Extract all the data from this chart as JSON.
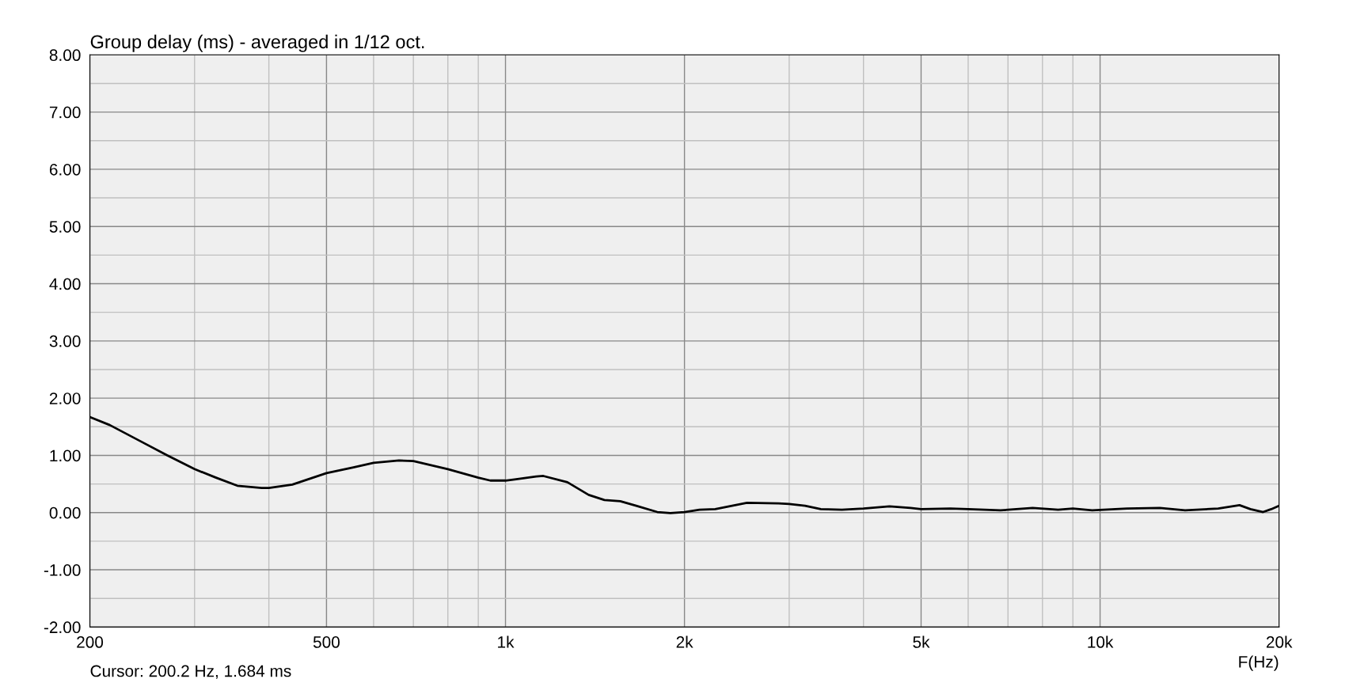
{
  "chart_data": {
    "type": "line",
    "title": "Group delay (ms) - averaged in 1/12 oct.",
    "xlabel": "F(Hz)",
    "annotations": [
      "Cursor: 200.2 Hz, 1.684 ms"
    ],
    "log": "x",
    "grid": true,
    "line_style": "solid",
    "marker": "none",
    "xlim": [
      200,
      20000
    ],
    "ylim": [
      -2,
      8
    ],
    "xticks": [
      {
        "value": 200,
        "label": "200"
      },
      {
        "value": 300,
        "label": null
      },
      {
        "value": 400,
        "label": null
      },
      {
        "value": 500,
        "label": "500"
      },
      {
        "value": 600,
        "label": null
      },
      {
        "value": 700,
        "label": null
      },
      {
        "value": 800,
        "label": null
      },
      {
        "value": 900,
        "label": null
      },
      {
        "value": 1000,
        "label": "1k"
      },
      {
        "value": 2000,
        "label": "2k"
      },
      {
        "value": 3000,
        "label": null
      },
      {
        "value": 4000,
        "label": null
      },
      {
        "value": 5000,
        "label": "5k"
      },
      {
        "value": 6000,
        "label": null
      },
      {
        "value": 7000,
        "label": null
      },
      {
        "value": 8000,
        "label": null
      },
      {
        "value": 9000,
        "label": null
      },
      {
        "value": 10000,
        "label": "10k"
      },
      {
        "value": 20000,
        "label": "20k"
      }
    ],
    "yticks": [
      {
        "value": -2,
        "label": "-2.00"
      },
      {
        "value": -1.5,
        "label": null
      },
      {
        "value": -1,
        "label": "-1.00"
      },
      {
        "value": -0.5,
        "label": null
      },
      {
        "value": 0,
        "label": "0.00"
      },
      {
        "value": 0.5,
        "label": null
      },
      {
        "value": 1,
        "label": "1.00"
      },
      {
        "value": 1.5,
        "label": null
      },
      {
        "value": 2,
        "label": "2.00"
      },
      {
        "value": 2.5,
        "label": null
      },
      {
        "value": 3,
        "label": "3.00"
      },
      {
        "value": 3.5,
        "label": null
      },
      {
        "value": 4,
        "label": "4.00"
      },
      {
        "value": 4.5,
        "label": null
      },
      {
        "value": 5,
        "label": "5.00"
      },
      {
        "value": 5.5,
        "label": null
      },
      {
        "value": 6,
        "label": "6.00"
      },
      {
        "value": 6.5,
        "label": null
      },
      {
        "value": 7,
        "label": "7.00"
      },
      {
        "value": 7.5,
        "label": null
      },
      {
        "value": 8,
        "label": "8.00"
      }
    ],
    "series": [
      {
        "color": "#000000",
        "x": [
          200,
          216,
          243,
          270,
          300,
          326,
          354,
          389,
          400,
          438,
          500,
          555,
          600,
          662,
          700,
          800,
          900,
          943,
          1000,
          1036,
          1126,
          1158,
          1271,
          1380,
          1467,
          1560,
          1659,
          1800,
          1894,
          2000,
          2120,
          2253,
          2548,
          2879,
          3000,
          3190,
          3391,
          3680,
          4000,
          4423,
          4800,
          5000,
          5600,
          6000,
          6800,
          7700,
          8500,
          9000,
          9700,
          11100,
          12600,
          13900,
          15800,
          17160,
          17900,
          18800,
          19400,
          20000
        ],
        "values": [
          1.67,
          1.53,
          1.25,
          1.0,
          0.76,
          0.61,
          0.47,
          0.43,
          0.43,
          0.49,
          0.69,
          0.79,
          0.87,
          0.91,
          0.9,
          0.76,
          0.61,
          0.56,
          0.56,
          0.58,
          0.63,
          0.64,
          0.53,
          0.31,
          0.22,
          0.2,
          0.12,
          0.01,
          -0.01,
          0.01,
          0.05,
          0.06,
          0.17,
          0.16,
          0.15,
          0.12,
          0.06,
          0.05,
          0.07,
          0.11,
          0.08,
          0.06,
          0.07,
          0.06,
          0.04,
          0.08,
          0.05,
          0.07,
          0.04,
          0.07,
          0.08,
          0.04,
          0.07,
          0.13,
          0.06,
          0.01,
          0.06,
          0.12
        ]
      }
    ]
  }
}
